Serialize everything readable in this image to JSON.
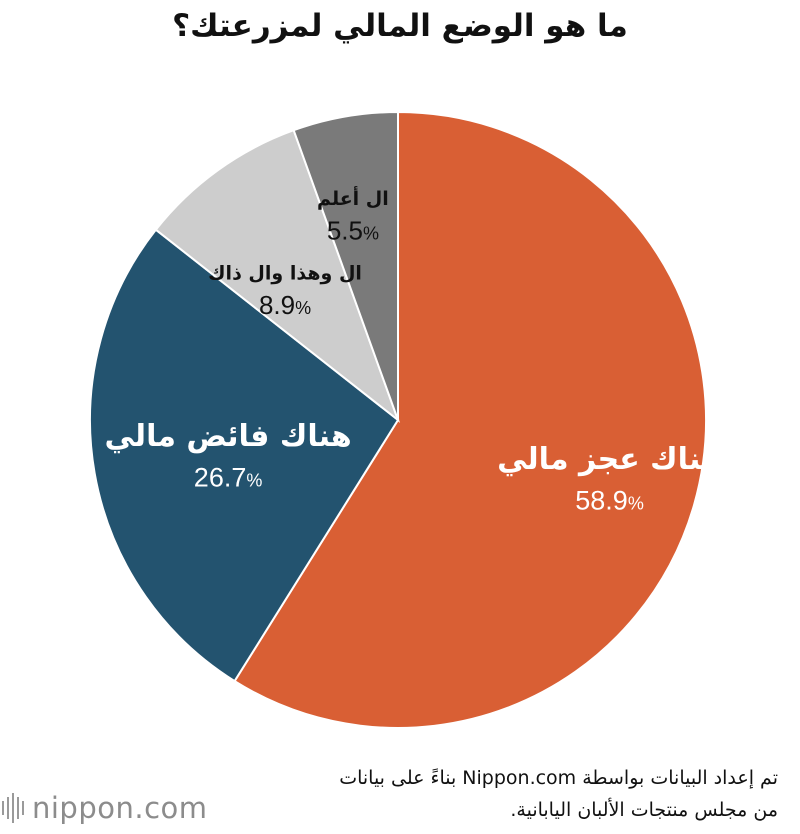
{
  "title": "ما هو الوضع المالي لمزرعتك؟",
  "chart_data": {
    "type": "pie",
    "title": "ما هو الوضع المالي لمزرعتك؟",
    "slices": [
      {
        "label": "هناك عجز مالي",
        "value": 58.9,
        "value_text": "58.9",
        "color": "#d95f34"
      },
      {
        "label": "هناك فائض مالي",
        "value": 26.7,
        "value_text": "26.7",
        "color": "#23536f"
      },
      {
        "label": "ال وهذا وال ذاك",
        "value": 8.9,
        "value_text": "8.9",
        "color": "#cdcdcd"
      },
      {
        "label": "ال أعلم",
        "value": 5.5,
        "value_text": "5.5",
        "color": "#7a7a7a"
      }
    ],
    "percent_sign": "%",
    "start": "12 o'clock",
    "direction": "clockwise"
  },
  "source_note": {
    "line1": "تم إعداد البيانات بواسطة Nippon.com بناءً على بيانات",
    "line2": "من مجلس منتجات الألبان اليابانية."
  },
  "logo": {
    "text": "nippon.com",
    "icon": "nippon-bars-logo"
  }
}
